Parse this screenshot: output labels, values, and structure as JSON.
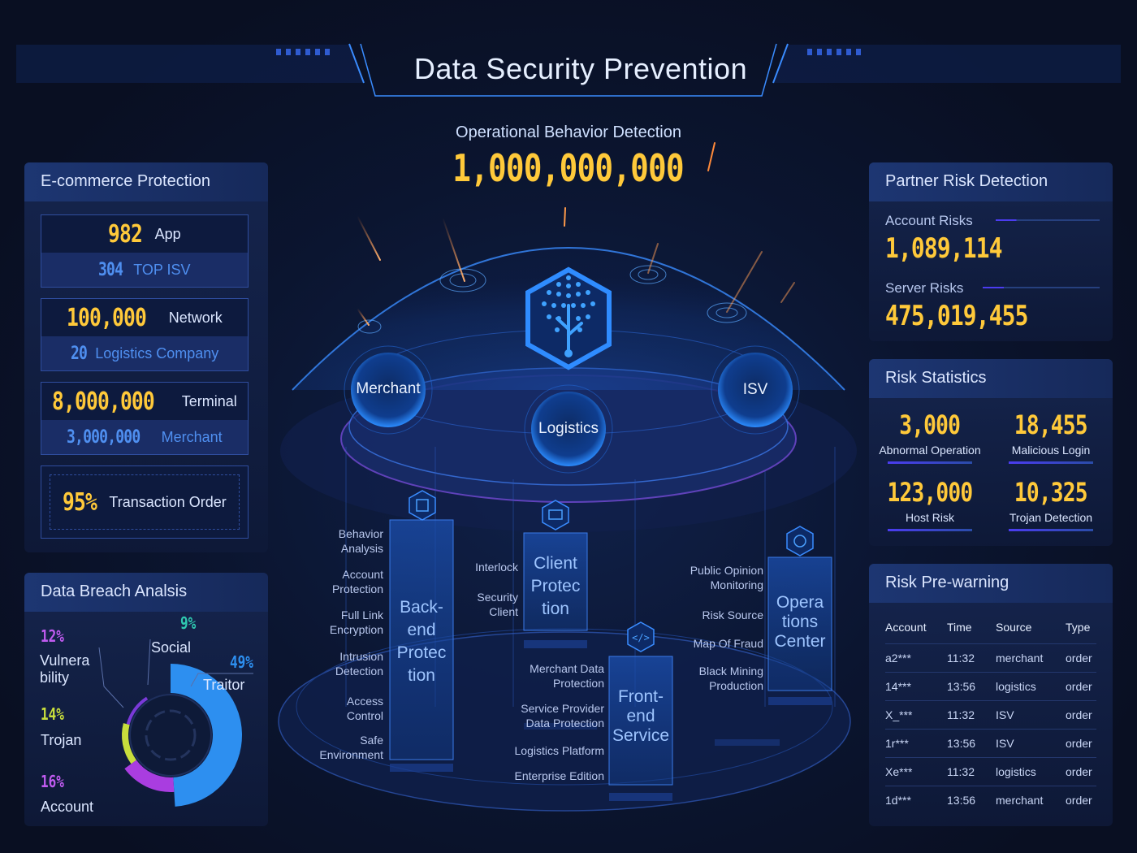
{
  "header": {
    "title": "Data Security Prevention",
    "subtitle": "Operational Behavior Detection",
    "big_count": "1,000,000,000"
  },
  "ecommerce": {
    "title": "E-commerce Protection",
    "cards": [
      {
        "top_value": "982",
        "top_label": "App",
        "bot_value": "304",
        "bot_label": "TOP ISV"
      },
      {
        "top_value": "100,000",
        "top_label": "Network",
        "bot_value": "20",
        "bot_label": "Logistics Company"
      },
      {
        "top_value": "8,000,000",
        "top_label": "Terminal",
        "bot_value": "3,000,000",
        "bot_label": "Merchant"
      }
    ],
    "transaction": {
      "value": "95%",
      "label": "Transaction Order"
    }
  },
  "breach": {
    "title": "Data Breach Analsis",
    "segments": [
      {
        "pct": "49%",
        "label": "Traitor",
        "fraction": 0.49,
        "color": "#2d8ff0"
      },
      {
        "pct": "16%",
        "label": "Account",
        "fraction": 0.16,
        "color": "#a93de0"
      },
      {
        "pct": "14%",
        "label": "Trojan",
        "fraction": 0.14,
        "color": "#c8de3c"
      },
      {
        "pct": "12%",
        "label": "Vulnera bility",
        "fraction": 0.12,
        "color": "#7a3ad8"
      },
      {
        "pct": "9%",
        "label": "Social",
        "fraction": 0.09,
        "color": "#2fc9b0"
      }
    ]
  },
  "partner": {
    "title": "Partner Risk Detection",
    "account_label": "Account Risks",
    "account_value": "1,089,114",
    "server_label": "Server Risks",
    "server_value": "475,019,455"
  },
  "risk_stats": {
    "title": "Risk Statistics",
    "items": [
      {
        "value": "3,000",
        "label": "Abnormal Operation"
      },
      {
        "value": "18,455",
        "label": "Malicious Login"
      },
      {
        "value": "123,000",
        "label": "Host Risk"
      },
      {
        "value": "10,325",
        "label": "Trojan Detection"
      }
    ]
  },
  "prewarning": {
    "title": "Risk Pre-warning",
    "columns": [
      "Account",
      "Time",
      "Source",
      "Type"
    ],
    "rows": [
      [
        "a2***",
        "11:32",
        "merchant",
        "order"
      ],
      [
        "14***",
        "13:56",
        "logistics",
        "order"
      ],
      [
        "X_***",
        "11:32",
        "ISV",
        "order"
      ],
      [
        "1r***",
        "13:56",
        "ISV",
        "order"
      ],
      [
        "Xe***",
        "11:32",
        "logistics",
        "order"
      ],
      [
        "1d***",
        "13:56",
        "merchant",
        "order"
      ]
    ]
  },
  "center": {
    "orbs": {
      "merchant": "Merchant",
      "logistics": "Logistics",
      "isv": "ISV"
    },
    "pillars": {
      "backend": "Back-\nend\nProtec\ntion",
      "client": "Client\nProtec\ntion",
      "frontend": "Front-\nend\nService",
      "operations": "Opera\ntions\nCenter"
    },
    "backend_labels": [
      "Behavior\nAnalysis",
      "Account\nProtection",
      "Full Link\nEncryption",
      "Intrusion\nDetection",
      "Access\nControl",
      "Safe\nEnvironment"
    ],
    "client_labels": [
      "Interlock",
      "Security\nClient"
    ],
    "frontend_labels": [
      "Merchant Data\nProtection",
      "Service Provider\nData Protection",
      "Logistics Platform",
      "Enterprise Edition"
    ],
    "operations_labels": [
      "Public Opinion\nMonitoring",
      "Risk Source",
      "Map Of Fraud",
      "Black Mining\nProduction"
    ]
  }
}
